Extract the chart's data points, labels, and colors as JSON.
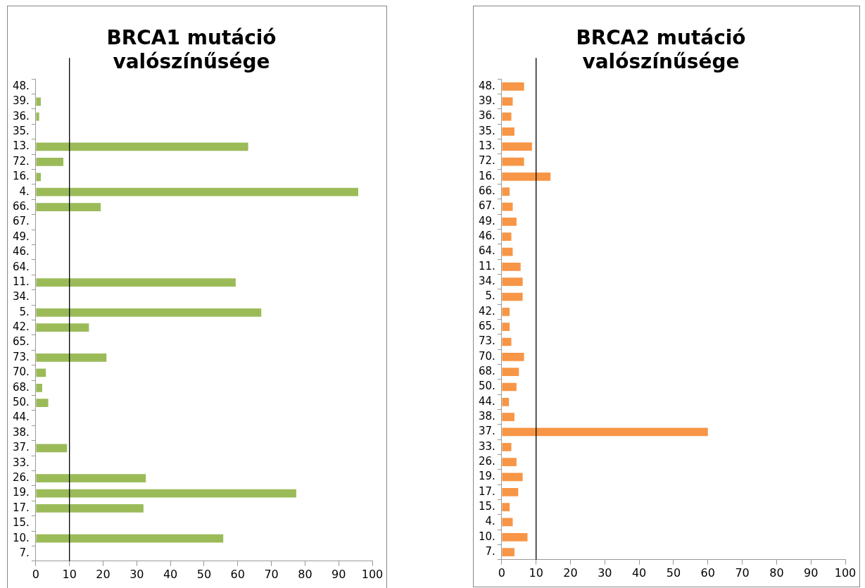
{
  "chart_data": [
    {
      "type": "bar",
      "orientation": "horizontal",
      "title": "BRCA1 mutáció valószínűsége",
      "categories": [
        "48.",
        "39.",
        "36.",
        "35.",
        "13.",
        "72.",
        "16.",
        "4.",
        "66.",
        "67.",
        "49.",
        "46.",
        "64.",
        "11.",
        "34.",
        "5.",
        "42.",
        "65.",
        "73.",
        "70.",
        "68.",
        "50.",
        "44.",
        "38.",
        "37.",
        "33.",
        "26.",
        "19.",
        "17.",
        "15.",
        "10.",
        "7."
      ],
      "values": [
        0,
        1.5,
        1,
        0,
        63.1,
        8.2,
        1.5,
        95.8,
        19.3,
        0,
        0,
        0,
        0,
        59.4,
        0,
        67,
        15.8,
        0,
        21,
        3,
        1.9,
        3.7,
        0,
        0,
        9.3,
        0,
        32.7,
        77.4,
        32,
        0,
        55.7,
        0
      ],
      "color": "#9bbb59",
      "xlim": [
        0,
        100
      ],
      "xticks": [
        0,
        10,
        20,
        30,
        40,
        50,
        60,
        70,
        80,
        90,
        100
      ],
      "grid": false,
      "legend": false,
      "ref_lines": [
        {
          "axis": "x",
          "value": 10,
          "color": "#000000"
        }
      ]
    },
    {
      "type": "bar",
      "orientation": "horizontal",
      "title": "BRCA2 mutáció valószínűsége",
      "categories": [
        "48.",
        "39.",
        "36.",
        "35.",
        "13.",
        "72.",
        "16.",
        "66.",
        "67.",
        "49.",
        "46.",
        "64.",
        "11.",
        "34.",
        "5.",
        "42.",
        "65.",
        "73.",
        "70.",
        "68.",
        "50.",
        "44.",
        "38.",
        "37.",
        "33.",
        "26.",
        "19.",
        "17.",
        "15.",
        "4.",
        "10.",
        "7."
      ],
      "values": [
        6.5,
        3.2,
        2.8,
        3.7,
        8.8,
        6.5,
        14.2,
        2.3,
        3.2,
        4.3,
        2.8,
        3.2,
        5.5,
        6.1,
        6.1,
        2.3,
        2.3,
        2.8,
        6.5,
        5,
        4.3,
        2.1,
        3.7,
        60,
        2.8,
        4.3,
        6.1,
        4.8,
        2.3,
        3.2,
        7.5,
        3.7
      ],
      "color": "#f79646",
      "xlim": [
        0,
        100
      ],
      "xticks": [
        0,
        10,
        20,
        30,
        40,
        50,
        60,
        70,
        80,
        90,
        100
      ],
      "grid": false,
      "legend": false,
      "ref_lines": [
        {
          "axis": "x",
          "value": 10,
          "color": "#000000"
        }
      ]
    }
  ]
}
